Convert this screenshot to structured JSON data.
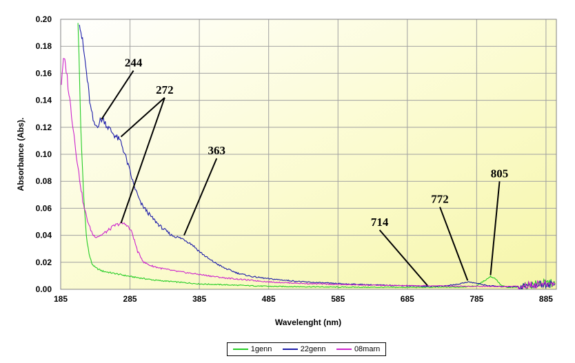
{
  "chart_data": {
    "type": "line",
    "title": "",
    "xlabel": "Wavelenght (nm)",
    "ylabel": "Absorbance (Abs).",
    "xlim": [
      185,
      900
    ],
    "ylim": [
      0,
      0.2
    ],
    "xticks": [
      185,
      285,
      385,
      485,
      585,
      685,
      785,
      885
    ],
    "yticks": [
      0.0,
      0.02,
      0.04,
      0.06,
      0.08,
      0.1,
      0.12,
      0.14,
      0.16,
      0.18,
      0.2
    ],
    "grid": true,
    "legend_position": "bottom",
    "series": [
      {
        "name": "1genn",
        "color": "#22cc22",
        "points": [
          [
            210,
            0.2
          ],
          [
            214,
            0.12
          ],
          [
            218,
            0.07
          ],
          [
            222,
            0.04
          ],
          [
            226,
            0.026
          ],
          [
            230,
            0.019
          ],
          [
            235,
            0.016
          ],
          [
            245,
            0.0135
          ],
          [
            260,
            0.012
          ],
          [
            285,
            0.0095
          ],
          [
            320,
            0.0068
          ],
          [
            385,
            0.004
          ],
          [
            485,
            0.0022
          ],
          [
            585,
            0.0016
          ],
          [
            685,
            0.0014
          ],
          [
            760,
            0.0016
          ],
          [
            785,
            0.0025
          ],
          [
            795,
            0.006
          ],
          [
            805,
            0.0095
          ],
          [
            812,
            0.008
          ],
          [
            820,
            0.003
          ],
          [
            830,
            0.0012
          ],
          [
            850,
            0.0018
          ],
          [
            870,
            0.004
          ],
          [
            890,
            0.005
          ],
          [
            898,
            0.004
          ]
        ]
      },
      {
        "name": "22genn",
        "color": "#1a1aa8",
        "points": [
          [
            212,
            0.2
          ],
          [
            220,
            0.17
          ],
          [
            228,
            0.135
          ],
          [
            233,
            0.122
          ],
          [
            237,
            0.121
          ],
          [
            241,
            0.124
          ],
          [
            244,
            0.126
          ],
          [
            248,
            0.125
          ],
          [
            252,
            0.121
          ],
          [
            258,
            0.117
          ],
          [
            265,
            0.113
          ],
          [
            272,
            0.109
          ],
          [
            280,
            0.096
          ],
          [
            290,
            0.078
          ],
          [
            300,
            0.064
          ],
          [
            315,
            0.054
          ],
          [
            330,
            0.046
          ],
          [
            345,
            0.04
          ],
          [
            363,
            0.037
          ],
          [
            375,
            0.033
          ],
          [
            385,
            0.028
          ],
          [
            400,
            0.022
          ],
          [
            420,
            0.016
          ],
          [
            440,
            0.012
          ],
          [
            460,
            0.0095
          ],
          [
            485,
            0.0078
          ],
          [
            535,
            0.0055
          ],
          [
            585,
            0.0042
          ],
          [
            635,
            0.0033
          ],
          [
            685,
            0.0026
          ],
          [
            714,
            0.0022
          ],
          [
            740,
            0.0025
          ],
          [
            760,
            0.004
          ],
          [
            772,
            0.0055
          ],
          [
            785,
            0.0045
          ],
          [
            800,
            0.0028
          ],
          [
            820,
            0.002
          ],
          [
            850,
            0.002
          ],
          [
            870,
            0.0035
          ],
          [
            898,
            0.004
          ]
        ]
      },
      {
        "name": "08marn",
        "color": "#cc22cc",
        "points": [
          [
            186,
            0.153
          ],
          [
            188,
            0.166
          ],
          [
            190,
            0.17
          ],
          [
            193,
            0.163
          ],
          [
            197,
            0.145
          ],
          [
            203,
            0.12
          ],
          [
            210,
            0.09
          ],
          [
            218,
            0.062
          ],
          [
            226,
            0.047
          ],
          [
            232,
            0.04
          ],
          [
            237,
            0.039
          ],
          [
            243,
            0.04
          ],
          [
            252,
            0.043
          ],
          [
            262,
            0.047
          ],
          [
            272,
            0.049
          ],
          [
            280,
            0.048
          ],
          [
            288,
            0.042
          ],
          [
            296,
            0.028
          ],
          [
            305,
            0.02
          ],
          [
            315,
            0.0175
          ],
          [
            330,
            0.0155
          ],
          [
            350,
            0.0135
          ],
          [
            385,
            0.011
          ],
          [
            420,
            0.0085
          ],
          [
            485,
            0.0055
          ],
          [
            535,
            0.0043
          ],
          [
            585,
            0.0036
          ],
          [
            635,
            0.003
          ],
          [
            685,
            0.0027
          ],
          [
            735,
            0.0025
          ],
          [
            785,
            0.0022
          ],
          [
            835,
            0.002
          ],
          [
            860,
            0.003
          ],
          [
            880,
            0.004
          ],
          [
            898,
            0.0045
          ]
        ]
      }
    ],
    "annotations": [
      {
        "text": "244",
        "point": [
          244,
          0.126
        ],
        "label_at": [
          290,
          0.165
        ]
      },
      {
        "text": "272",
        "point": [
          272,
          0.113
        ],
        "label_at": [
          335,
          0.145
        ]
      },
      {
        "text": "272",
        "point": [
          272,
          0.049
        ],
        "label_at": [
          335,
          0.145
        ]
      },
      {
        "text": "363",
        "point": [
          363,
          0.04
        ],
        "label_at": [
          410,
          0.1
        ]
      },
      {
        "text": "714",
        "point": [
          714,
          0.0028
        ],
        "label_at": [
          645,
          0.047
        ]
      },
      {
        "text": "772",
        "point": [
          772,
          0.0065
        ],
        "label_at": [
          732,
          0.064
        ]
      },
      {
        "text": "805",
        "point": [
          805,
          0.0105
        ],
        "label_at": [
          818,
          0.083
        ]
      }
    ]
  }
}
